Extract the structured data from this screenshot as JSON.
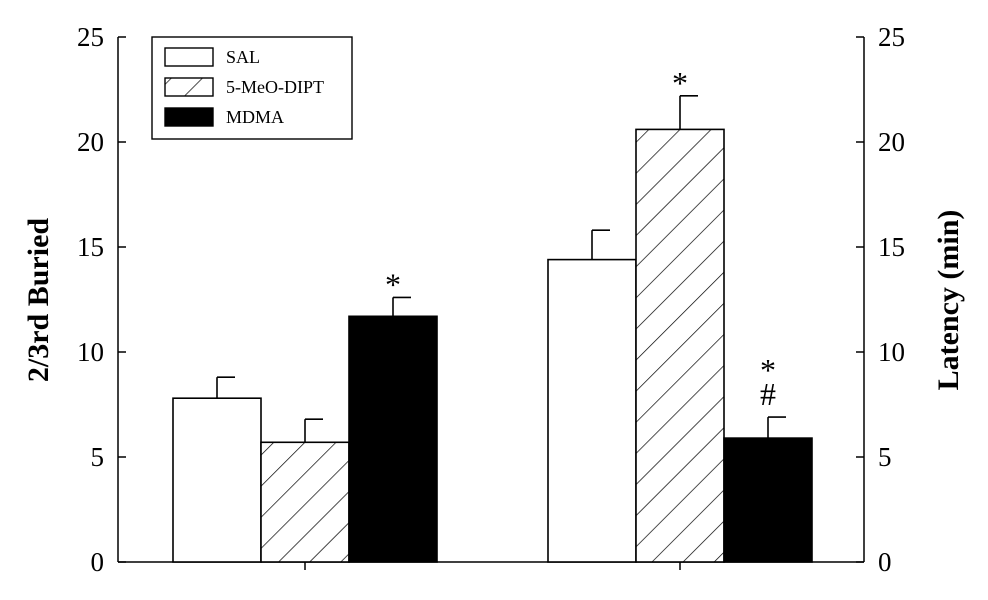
{
  "chart_data": {
    "type": "bar",
    "categories": [
      "",
      ""
    ],
    "series": [
      {
        "name": "SAL",
        "values": [
          7.8,
          14.4
        ],
        "errors": [
          1.0,
          1.4
        ],
        "fill": "white"
      },
      {
        "name": "5-MeO-DIPT",
        "values": [
          5.7,
          20.6
        ],
        "errors": [
          1.1,
          1.6
        ],
        "fill": "hatch"
      },
      {
        "name": "MDMA",
        "values": [
          11.7,
          5.9
        ],
        "errors": [
          0.9,
          1.0
        ],
        "fill": "black"
      }
    ],
    "annotations": [
      {
        "category": 0,
        "series": 2,
        "text": "*"
      },
      {
        "category": 1,
        "series": 1,
        "text": "*"
      },
      {
        "category": 1,
        "series": 2,
        "text": "*\n#"
      }
    ],
    "ylabel_left": "2/3rd Buried",
    "ylabel_right": "Latency (min)",
    "ylim": [
      0,
      25
    ],
    "yticks": [
      0,
      5,
      10,
      15,
      20,
      25
    ],
    "grid": false,
    "legend_position": "top-left"
  },
  "colors": {
    "bar_stroke": "#000000",
    "black_fill": "#000000",
    "white_fill": "#ffffff"
  }
}
